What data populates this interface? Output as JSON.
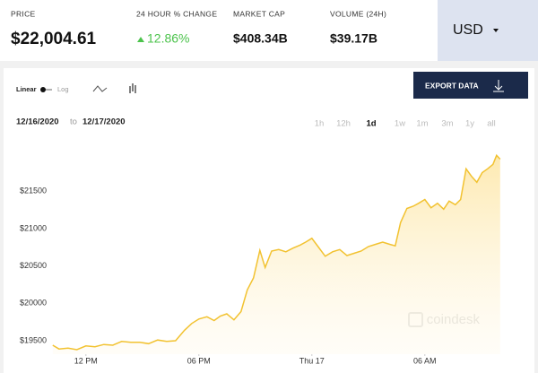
{
  "header": {
    "price_label": "PRICE",
    "price": "$22,004.61",
    "change_label": "24 HOUR % CHANGE",
    "change": "12.86%",
    "market_cap_label": "MARKET CAP",
    "market_cap": "$408.34B",
    "volume_label": "VOLUME (24H)",
    "volume": "$39.17B",
    "currency": "USD"
  },
  "controls": {
    "linear": "Linear",
    "log": "Log",
    "export": "EXPORT DATA",
    "from": "12/16/2020",
    "to_word": "to",
    "to": "12/17/2020",
    "ranges": [
      "1h",
      "12h",
      "1d",
      "1w",
      "1m",
      "3m",
      "1y",
      "all"
    ],
    "active_range": "1d"
  },
  "chart_data": {
    "type": "line",
    "color": "#f2c230",
    "watermark": "coindesk",
    "x": [
      10.24,
      10.57,
      11.05,
      11.52,
      12,
      12.48,
      12.95,
      13.43,
      13.9,
      14.38,
      14.86,
      15.33,
      15.81,
      16.29,
      16.76,
      17.24,
      17.62,
      18,
      18.43,
      18.81,
      19.14,
      19.48,
      19.86,
      20.24,
      20.57,
      20.9,
      21.24,
      21.52,
      21.86,
      22.24,
      22.62,
      23,
      23.38,
      23.67,
      24,
      24.33,
      24.71,
      25.1,
      25.48,
      25.86,
      26.24,
      26.62,
      27,
      27.38,
      27.76,
      28.14,
      28.43,
      28.71,
      29.05,
      29.38,
      29.67,
      30,
      30.33,
      30.67,
      31,
      31.29,
      31.62,
      31.9,
      32.19,
      32.48,
      32.76,
      33.05,
      33.33,
      33.62,
      33.81,
      34
    ],
    "values": [
      19440,
      19390,
      19400,
      19380,
      19430,
      19420,
      19450,
      19440,
      19490,
      19480,
      19480,
      19460,
      19510,
      19490,
      19500,
      19640,
      19730,
      19790,
      19820,
      19770,
      19830,
      19860,
      19780,
      19890,
      20180,
      20340,
      20710,
      20480,
      20700,
      20720,
      20690,
      20740,
      20780,
      20820,
      20870,
      20760,
      20630,
      20690,
      20720,
      20640,
      20670,
      20700,
      20760,
      20790,
      20820,
      20790,
      20770,
      21080,
      21270,
      21300,
      21340,
      21390,
      21280,
      21340,
      21260,
      21370,
      21320,
      21390,
      21800,
      21700,
      21620,
      21750,
      21800,
      21860,
      21980,
      21930
    ],
    "xlim": [
      10.2,
      34.2
    ],
    "ylim": [
      19320,
      22140
    ],
    "xticks": [
      {
        "value": 12,
        "label": "12 PM"
      },
      {
        "value": 18,
        "label": "06 PM"
      },
      {
        "value": 24,
        "label": "Thu 17"
      },
      {
        "value": 30,
        "label": "06 AM"
      }
    ],
    "yticks": [
      {
        "value": 19500,
        "label": "$19500"
      },
      {
        "value": 20000,
        "label": "$20000"
      },
      {
        "value": 20500,
        "label": "$20500"
      },
      {
        "value": 21000,
        "label": "$21000"
      },
      {
        "value": 21500,
        "label": "$21500"
      }
    ],
    "grid": false
  }
}
